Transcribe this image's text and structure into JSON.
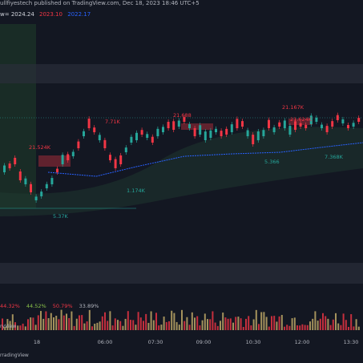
{
  "header": {
    "publisher_line": "ullfiyestech published on TradingView.com, Dec 18, 2023 18:46 UTC+5",
    "values_prefix": "w=",
    "value_open": "2024.24",
    "value_high": "2023.10",
    "value_low": "2022.17"
  },
  "annotations": {
    "top_right_box": "21.167K",
    "mid_box": "21.624K",
    "upper_box": "7.71K",
    "center_box": "21.688",
    "left_box": "21.524K",
    "below_label": "1.174K",
    "bottom_label": "5.37K",
    "right_lower": "7.368K",
    "right_lower2": "5.366"
  },
  "volume_panel": {
    "percentages": [
      "44.32%",
      "44.52%",
      "50.79%",
      "33.89%"
    ]
  },
  "view_label": "ryView",
  "x_axis": {
    "labels": [
      "18",
      "06:00",
      "07:30",
      "09:00",
      "10:30",
      "12:00",
      "13:30"
    ]
  },
  "footer": "rradingView",
  "colors": {
    "background": "#131722",
    "bull": "#26a69a",
    "bear": "#f23645",
    "vwap": "#2962ff"
  },
  "chart_data": {
    "type": "candlestick",
    "title": "",
    "x": [
      "18",
      "06:00",
      "07:30",
      "09:00",
      "10:30",
      "12:00",
      "13:30"
    ],
    "note_series": [
      {
        "name": "VWAP",
        "trend": "rising"
      }
    ]
  }
}
